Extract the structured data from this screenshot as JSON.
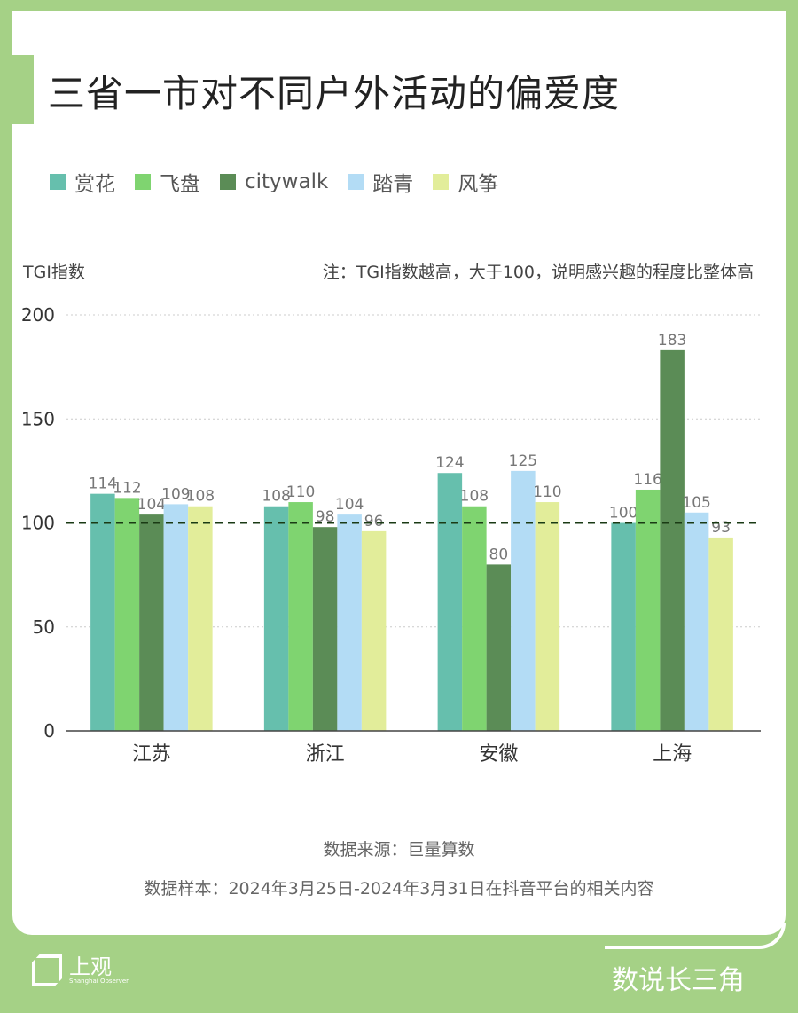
{
  "title": "三省一市对不同户外活动的偏爱度",
  "note": "注：TGI指数越高，大于100，说明感兴趣的程度比整体高",
  "source": "数据来源：巨量算数",
  "sample": "数据样本：2024年3月25日-2024年3月31日在抖音平台的相关内容",
  "footer": {
    "logo_text": "上观",
    "logo_sub": "Shanghai Observer",
    "brand": "数说长三角"
  },
  "chart_data": {
    "type": "bar",
    "title": "三省一市对不同户外活动的偏爱度",
    "ylabel": "TGI指数",
    "ylim": [
      0,
      200
    ],
    "yticks": [
      "0",
      "50",
      "100",
      "150",
      "200"
    ],
    "reference_line": 100,
    "categories": [
      "江苏",
      "浙江",
      "安徽",
      "上海"
    ],
    "legend_position": "top-left",
    "series": [
      {
        "name": "赏花",
        "color": "#66bfad",
        "values": [
          114,
          108,
          124,
          100
        ]
      },
      {
        "name": "飞盘",
        "color": "#7fd470",
        "values": [
          112,
          110,
          108,
          116
        ]
      },
      {
        "name": "citywalk",
        "color": "#5b8c56",
        "values": [
          104,
          98,
          80,
          183
        ]
      },
      {
        "name": "踏青",
        "color": "#b3dcf5",
        "values": [
          109,
          104,
          125,
          105
        ]
      },
      {
        "name": "风筝",
        "color": "#e2ed9a",
        "values": [
          108,
          96,
          110,
          93
        ]
      }
    ]
  }
}
